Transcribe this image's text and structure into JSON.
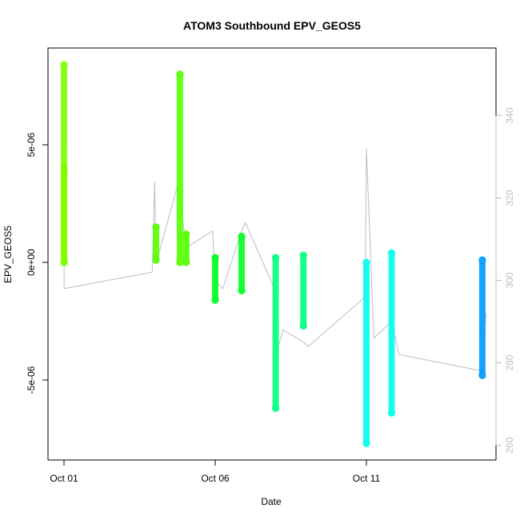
{
  "chart_data": {
    "type": "scatter",
    "title": "ATOM3 Southbound EPV_GEOS5",
    "xlabel": "Date",
    "ylabel": "EPV_GEOS5",
    "y2label": "",
    "xlim": [
      "2016-10-01",
      "2016-10-15"
    ],
    "ylim": [
      -8.3e-06,
      8.6e-06
    ],
    "y2lim": [
      258,
      360
    ],
    "x_ticks": [
      {
        "value": "2016-10-01",
        "label": "Oct 01"
      },
      {
        "value": "2016-10-06",
        "label": "Oct 06"
      },
      {
        "value": "2016-10-11",
        "label": "Oct 11"
      }
    ],
    "y_ticks": [
      {
        "value": -5e-06,
        "label": "-5e-06"
      },
      {
        "value": 0,
        "label": "0e+00"
      },
      {
        "value": 5e-06,
        "label": "5e-06"
      }
    ],
    "y2_ticks": [
      {
        "value": 260,
        "label": "260"
      },
      {
        "value": 280,
        "label": "280"
      },
      {
        "value": 300,
        "label": "300"
      },
      {
        "value": 320,
        "label": "320"
      },
      {
        "value": 340,
        "label": "340"
      }
    ],
    "grid": false,
    "series": [
      {
        "color": "#7fff00",
        "points": [
          {
            "x": "2016-10-01 00:00",
            "ymin": 0.0,
            "ymax": 8.4e-06
          },
          {
            "x": "2016-10-01 00:05",
            "ymin": 0.0,
            "ymax": 4e-06
          }
        ]
      },
      {
        "color": "#55ff00",
        "points": [
          {
            "x": "2016-10-04 01:00",
            "ymin": 1e-07,
            "ymax": 1.5e-06
          },
          {
            "x": "2016-10-04 20:00",
            "ymin": 0.0,
            "ymax": 8e-06
          },
          {
            "x": "2016-10-05 01:00",
            "ymin": 0.0,
            "ymax": 1.2e-06
          }
        ]
      },
      {
        "color": "#00ff22",
        "points": [
          {
            "x": "2016-10-06 00:00",
            "ymin": -1.6e-06,
            "ymax": 2e-07
          },
          {
            "x": "2016-10-06 21:00",
            "ymin": -1.2e-06,
            "ymax": 1.1e-06
          }
        ]
      },
      {
        "color": "#00ff7f",
        "points": [
          {
            "x": "2016-10-08 00:00",
            "ymin": -6.2e-06,
            "ymax": 2e-07
          },
          {
            "x": "2016-10-08 22:00",
            "ymin": -2.7e-06,
            "ymax": 3e-07
          }
        ]
      },
      {
        "color": "#00ffee",
        "points": [
          {
            "x": "2016-10-11 00:00",
            "ymin": -7.7e-06,
            "ymax": 0.0
          },
          {
            "x": "2016-10-11 20:00",
            "ymin": -6.4e-06,
            "ymax": 4e-07
          }
        ]
      },
      {
        "color": "#0099ff",
        "points": [
          {
            "x": "2016-10-14 20:00",
            "ymin": -4.8e-06,
            "ymax": 1e-07
          }
        ]
      }
    ],
    "secondary_line": {
      "color": "#bdbdbd",
      "x": [
        "2016-10-01 00:00",
        "2016-10-01 00:05",
        "2016-10-03 22:00",
        "2016-10-04 00:00",
        "2016-10-04 01:00",
        "2016-10-04 18:00",
        "2016-10-04 20:00",
        "2016-10-05 01:00",
        "2016-10-05 22:00",
        "2016-10-06 00:00",
        "2016-10-06 06:00",
        "2016-10-06 21:00",
        "2016-10-07 00:00",
        "2016-10-07 23:00",
        "2016-10-08 00:00",
        "2016-10-08 06:00",
        "2016-10-08 22:00",
        "2016-10-09 02:00",
        "2016-10-10 23:00",
        "2016-10-11 00:00",
        "2016-10-11 06:00",
        "2016-10-11 20:00",
        "2016-10-12 02:00",
        "2016-10-14 20:00",
        "2016-10-14 23:00"
      ],
      "y": [
        336,
        298,
        302,
        324,
        304,
        323,
        320,
        308,
        312,
        300,
        298,
        312,
        314,
        298,
        282,
        288,
        285,
        284,
        296,
        332,
        286,
        290,
        282,
        278,
        292
      ]
    }
  }
}
